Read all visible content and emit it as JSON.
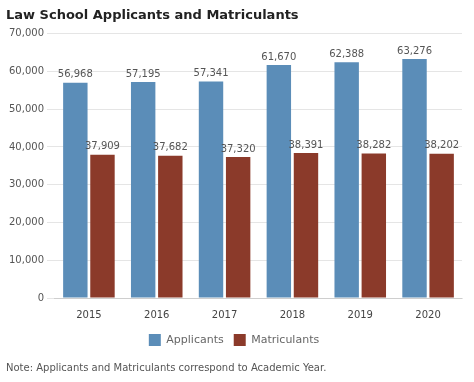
{
  "chart_data": {
    "type": "bar",
    "title": "Law School Applicants and Matriculants",
    "annotations": [
      "Note: Applicants and Matriculants correspond to Academic Year."
    ],
    "categories": [
      "2015",
      "2016",
      "2017",
      "2018",
      "2019",
      "2020"
    ],
    "series": [
      {
        "name": "Applicants",
        "color": "#5b8db8",
        "values": [
          56968,
          57195,
          57341,
          61670,
          62388,
          63276
        ],
        "value_labels": [
          "56,968",
          "57,195",
          "57,341",
          "61,670",
          "62,388",
          "63,276"
        ]
      },
      {
        "name": "Matriculants",
        "color": "#8b3a2a",
        "values": [
          37909,
          37682,
          37320,
          38391,
          38282,
          38202
        ],
        "value_labels": [
          "37,909",
          "37,682",
          "37,320",
          "38,391",
          "38,282",
          "38,202"
        ]
      }
    ],
    "ylim": [
      0,
      70000
    ],
    "yticks": [
      0,
      {
        "value": 10000,
        "label": "10,000"
      },
      {
        "value": 20000,
        "label": "20,000"
      },
      {
        "value": 30000,
        "label": "30,000"
      },
      {
        "value": 40000,
        "label": "40,000"
      },
      {
        "value": 50000,
        "label": "50,000"
      },
      {
        "value": 60000,
        "label": "60,000"
      },
      {
        "value": 70000,
        "label": "70,000"
      }
    ],
    "grid": true,
    "legend": "bottom",
    "data_labels": true
  }
}
